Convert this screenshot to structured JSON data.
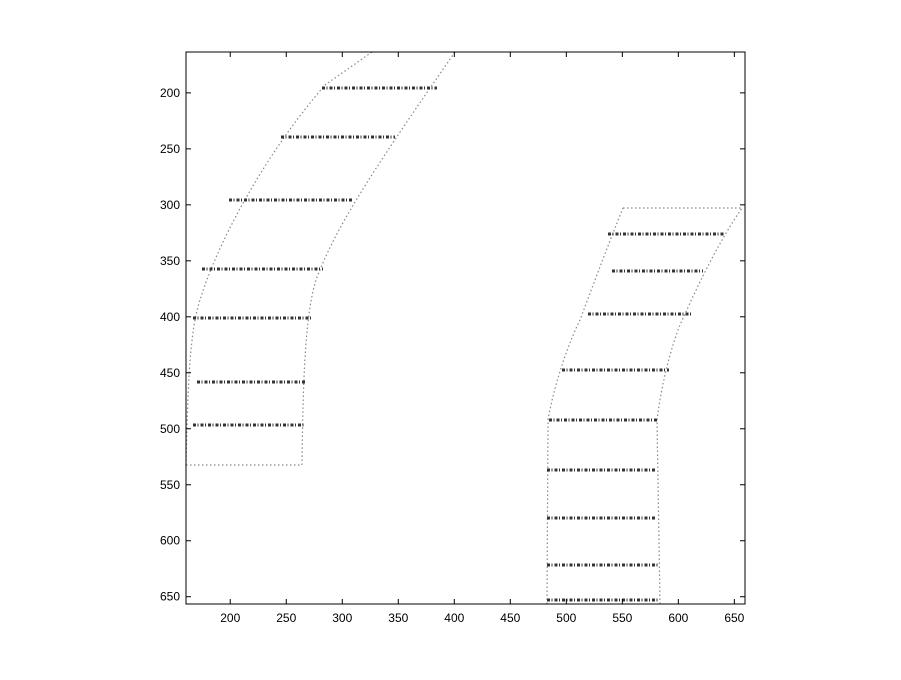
{
  "chart_data": {
    "type": "image",
    "xlim": [
      160.5,
      659.5
    ],
    "ylim": [
      163.5,
      656.5
    ],
    "ydir": "reverse",
    "xticks": [
      200,
      250,
      300,
      350,
      400,
      450,
      500,
      550,
      600,
      650
    ],
    "yticks": [
      200,
      250,
      300,
      350,
      400,
      450,
      500,
      550,
      600,
      650
    ]
  }
}
